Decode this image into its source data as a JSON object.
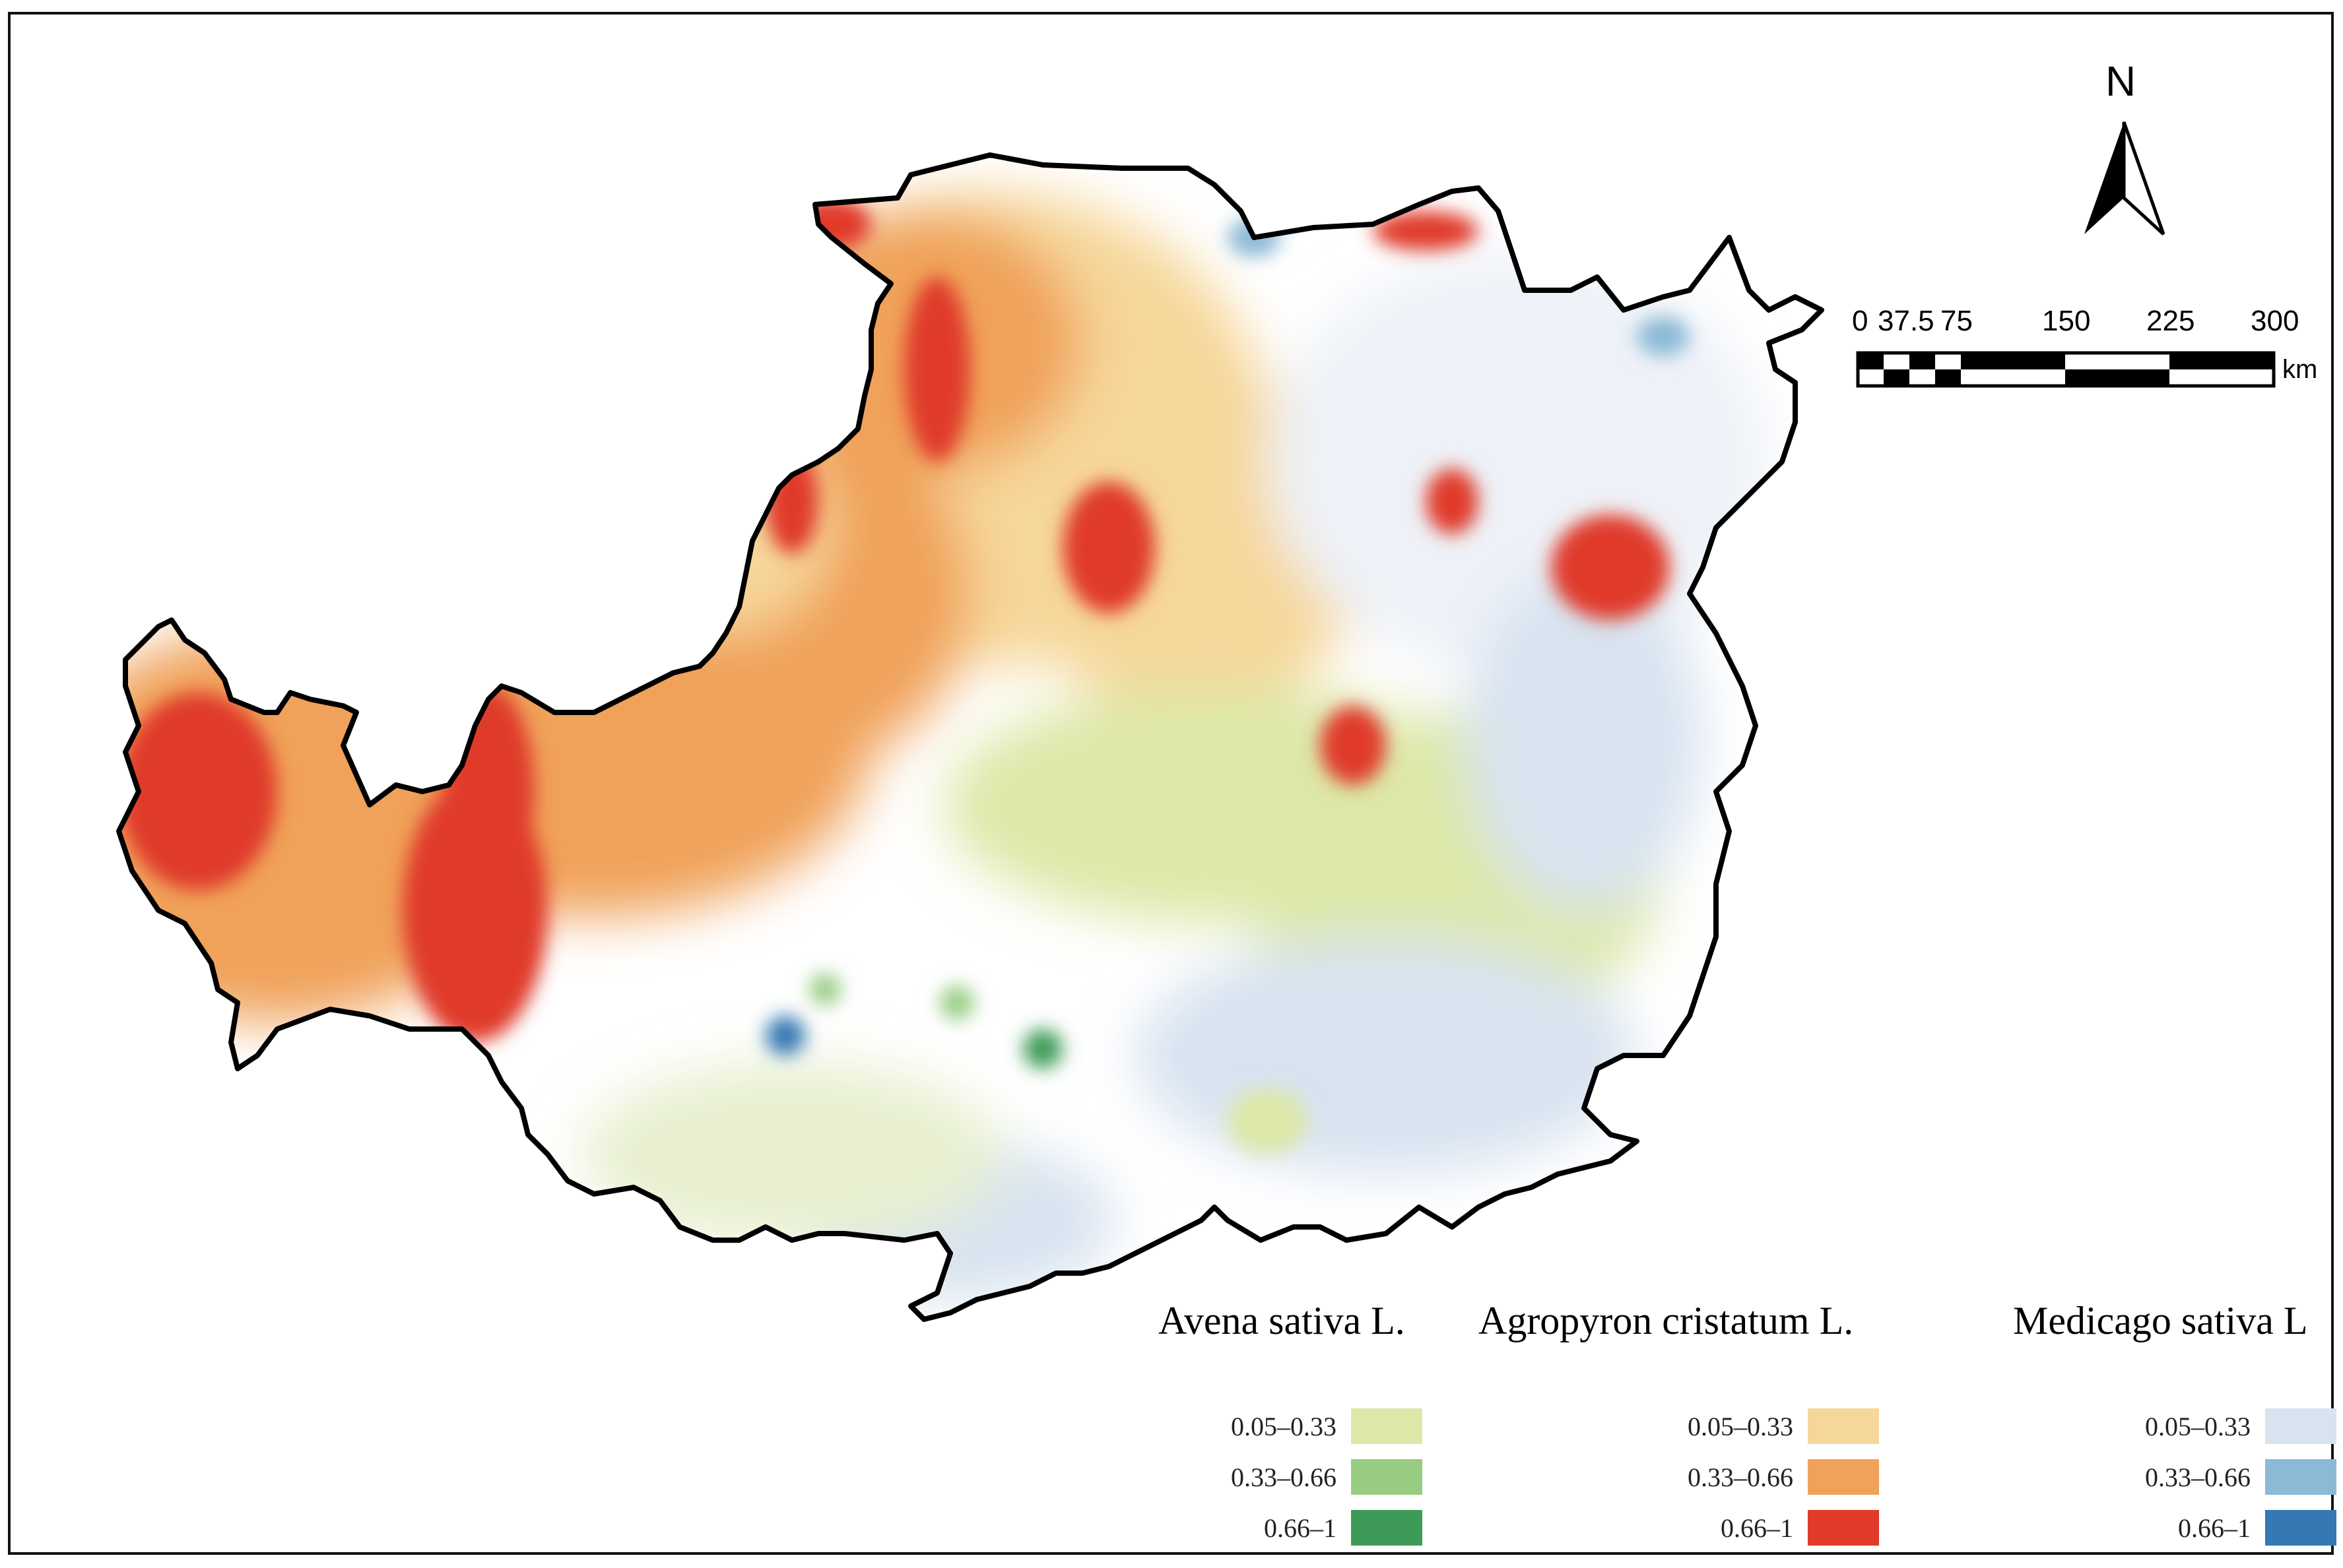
{
  "north_arrow": {
    "label": "N"
  },
  "scale_bar": {
    "ticks": [
      "0",
      "37.5",
      "75",
      "150",
      "225",
      "300"
    ],
    "unit": "km"
  },
  "legend": {
    "groups": [
      {
        "title": "Avena sativa L.",
        "classes": [
          {
            "label": "0.05–0.33",
            "color": "#dde8a8"
          },
          {
            "label": "0.33–0.66",
            "color": "#98cc83"
          },
          {
            "label": "0.66–1",
            "color": "#3d9b57"
          }
        ]
      },
      {
        "title": "Agropyron cristatum L.",
        "classes": [
          {
            "label": "0.05–0.33",
            "color": "#f6d79a"
          },
          {
            "label": "0.33–0.66",
            "color": "#f0a25a"
          },
          {
            "label": "0.66–1",
            "color": "#e03b2a"
          }
        ]
      },
      {
        "title": "Medicago sativa L",
        "classes": [
          {
            "label": "0.05–0.33",
            "color": "#d8e3f0"
          },
          {
            "label": "0.33–0.66",
            "color": "#8cbad6"
          },
          {
            "label": "0.66–1",
            "color": "#3478b4"
          }
        ]
      }
    ]
  }
}
